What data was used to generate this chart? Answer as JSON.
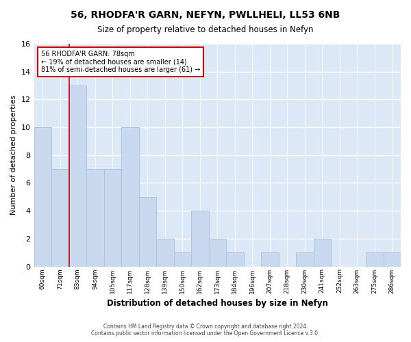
{
  "title": "56, RHODFA'R GARN, NEFYN, PWLLHELI, LL53 6NB",
  "subtitle": "Size of property relative to detached houses in Nefyn",
  "xlabel": "Distribution of detached houses by size in Nefyn",
  "ylabel": "Number of detached properties",
  "bin_labels": [
    "60sqm",
    "71sqm",
    "83sqm",
    "94sqm",
    "105sqm",
    "117sqm",
    "128sqm",
    "139sqm",
    "150sqm",
    "162sqm",
    "173sqm",
    "184sqm",
    "196sqm",
    "207sqm",
    "218sqm",
    "230sqm",
    "241sqm",
    "252sqm",
    "263sqm",
    "275sqm",
    "286sqm"
  ],
  "bar_values": [
    10,
    7,
    13,
    7,
    7,
    10,
    5,
    2,
    1,
    4,
    2,
    1,
    0,
    1,
    0,
    1,
    2,
    0,
    0,
    1,
    1
  ],
  "bar_color": "#c8d8ee",
  "bar_edge_color": "#aec4de",
  "annotation_box_text": "56 RHODFA'R GARN: 78sqm\n← 19% of detached houses are smaller (14)\n81% of semi-detached houses are larger (61) →",
  "annotation_box_color": "white",
  "annotation_box_edge_color": "#cc0000",
  "vline_color": "#cc0000",
  "vline_bin_index": 2,
  "ylim": [
    0,
    16
  ],
  "yticks": [
    0,
    2,
    4,
    6,
    8,
    10,
    12,
    14,
    16
  ],
  "background_color": "#ffffff",
  "plot_bg_color": "#dce8f5",
  "grid_color": "#ffffff",
  "footer_line1": "Contains HM Land Registry data © Crown copyright and database right 2024.",
  "footer_line2": "Contains public sector information licensed under the Open Government Licence v.3.0."
}
